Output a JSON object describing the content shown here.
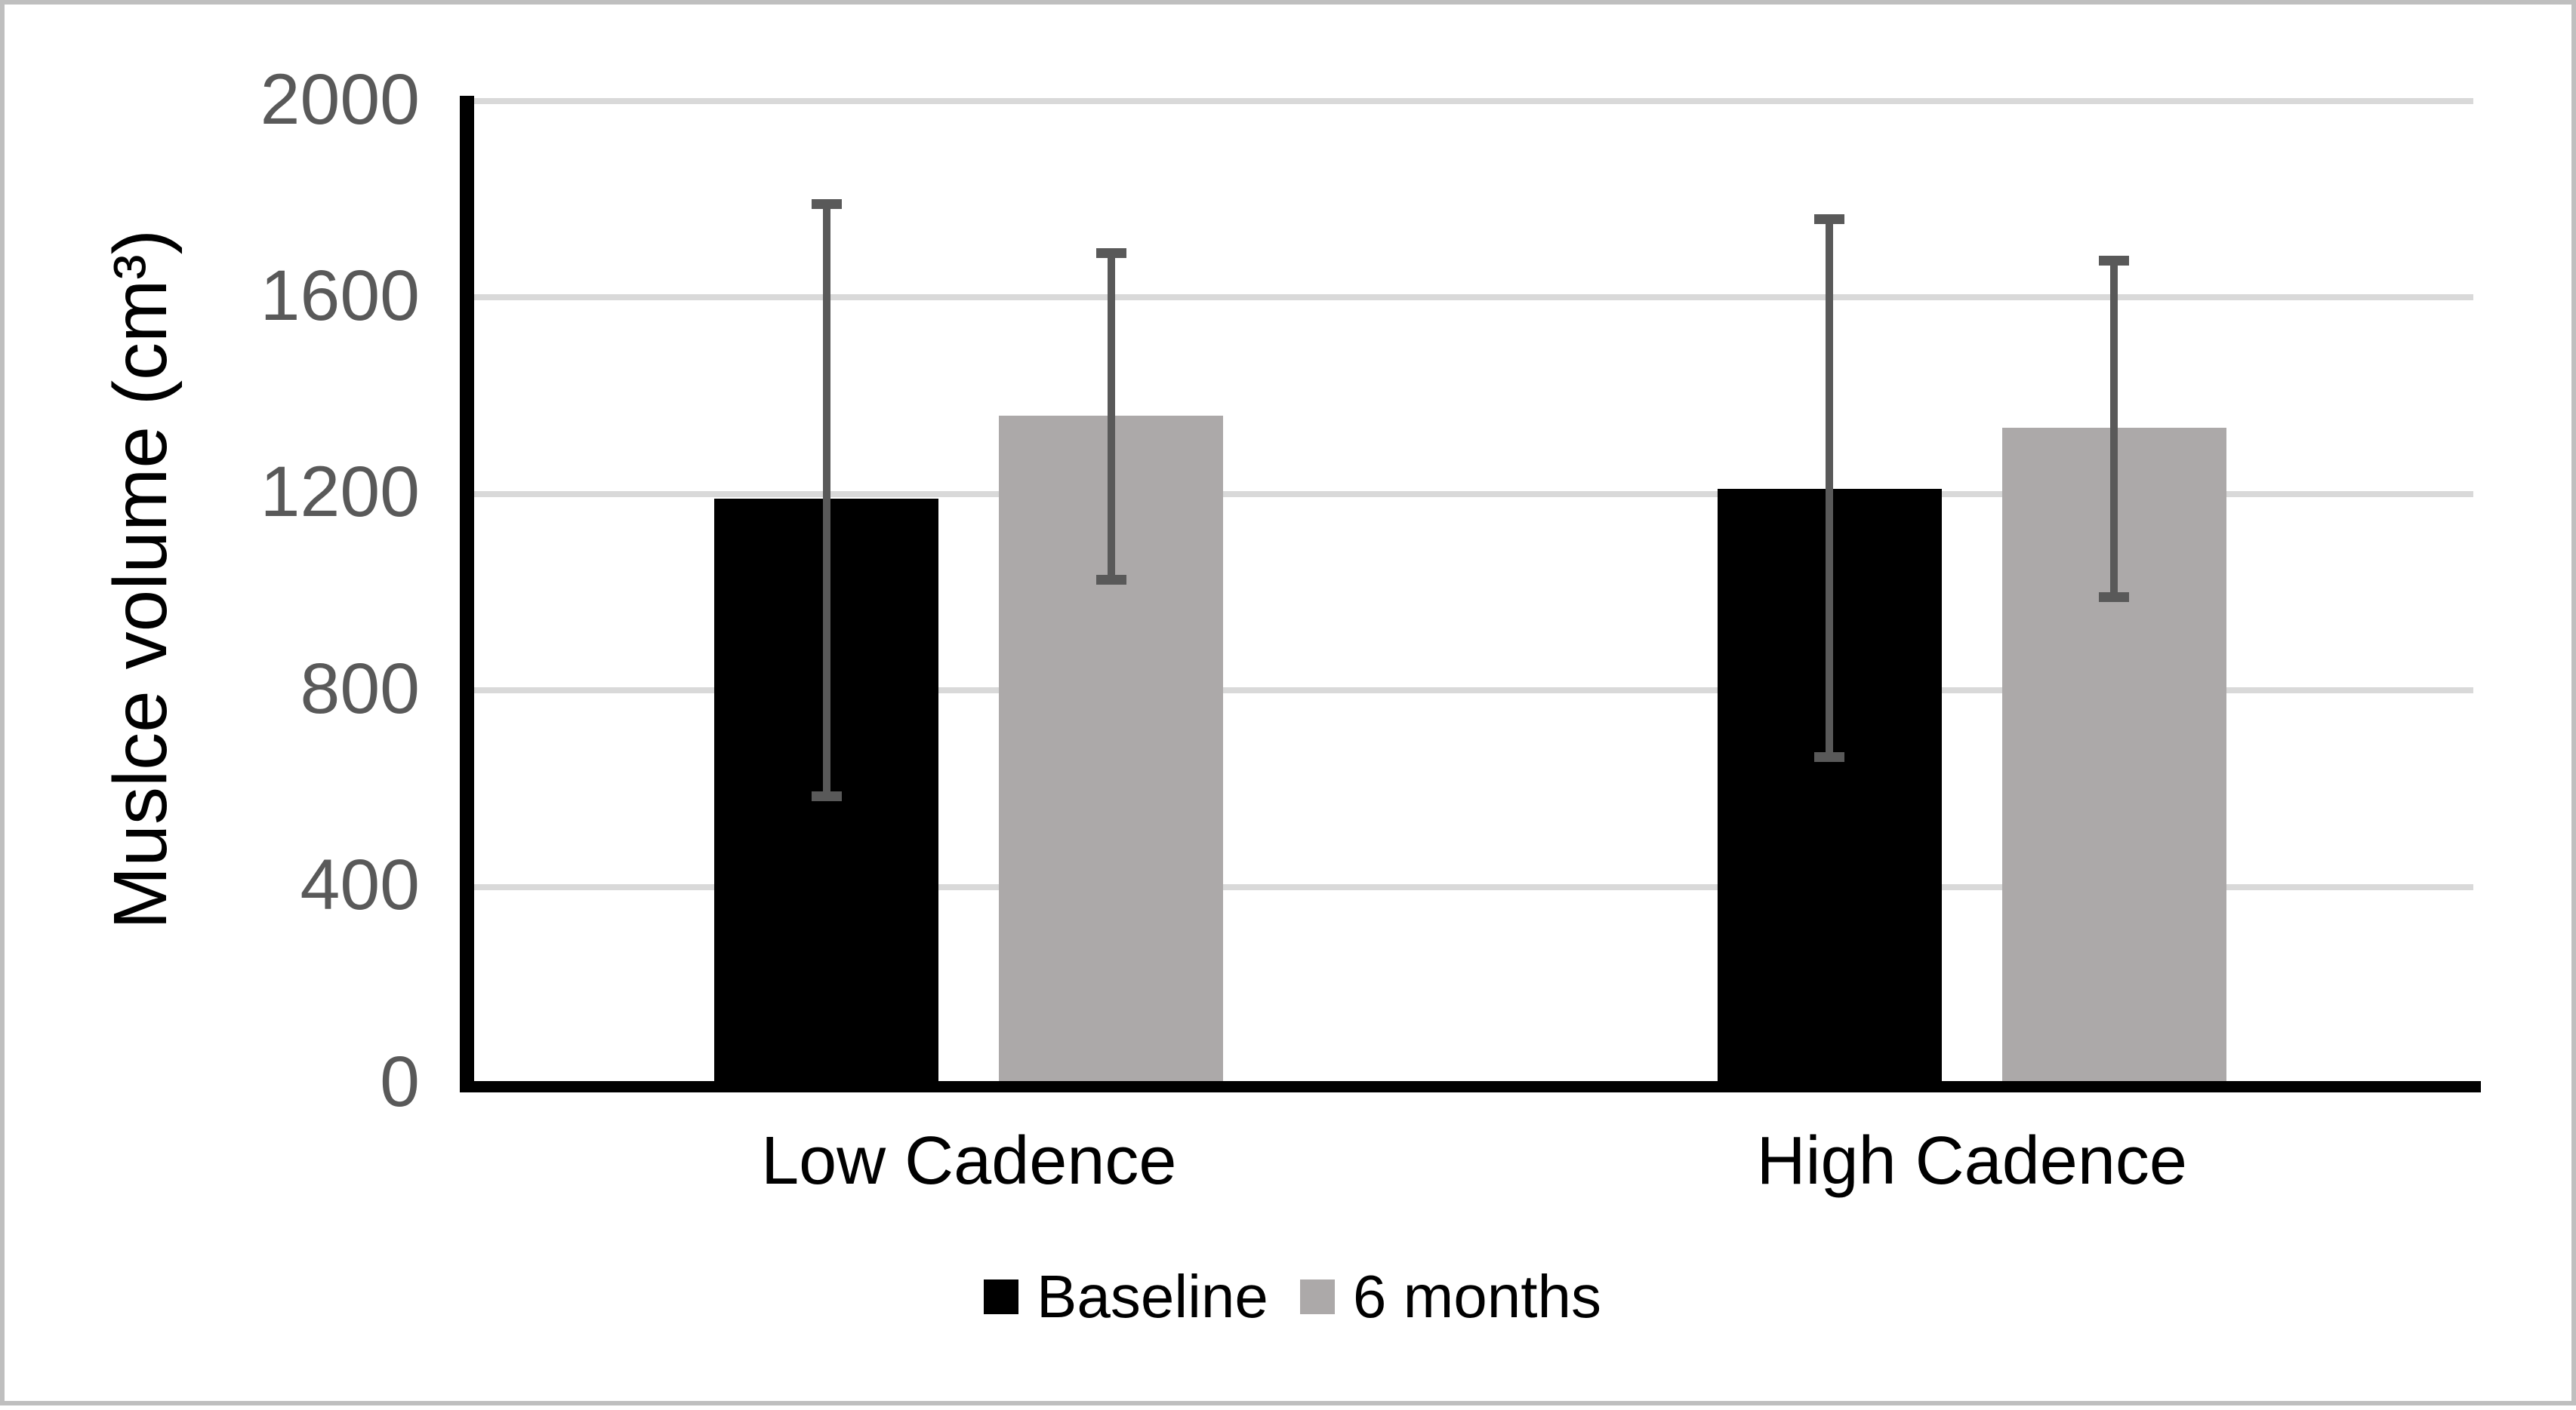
{
  "chart_data": {
    "type": "bar",
    "title": "",
    "xlabel": "",
    "ylabel": "Muslce volume (cm³)",
    "categories": [
      "Low Cadence",
      "High Cadence"
    ],
    "series": [
      {
        "name": "Baseline",
        "color": "#000000",
        "values": [
          1190,
          1210
        ],
        "error_low": [
          585,
          665
        ],
        "error_high": [
          1790,
          1760
        ]
      },
      {
        "name": "6 months",
        "color": "#ACA9A9",
        "values": [
          1360,
          1335
        ],
        "error_low": [
          1025,
          990
        ],
        "error_high": [
          1690,
          1675
        ]
      }
    ],
    "ylim": [
      0,
      2000
    ],
    "yticks": [
      0,
      400,
      800,
      1200,
      1600,
      2000
    ],
    "ytick_labels": [
      "0",
      "400",
      "800",
      "1200",
      "1600",
      "2000"
    ],
    "grid": "horizontal",
    "legend_position": "bottom"
  },
  "colors": {
    "axis": "#000000",
    "gridline": "#D9D9D9",
    "error_bar": "#595959",
    "tick_text": "#595959",
    "label_text": "#000000",
    "frame_border": "#BFBFBF",
    "background": "#FFFFFF"
  }
}
